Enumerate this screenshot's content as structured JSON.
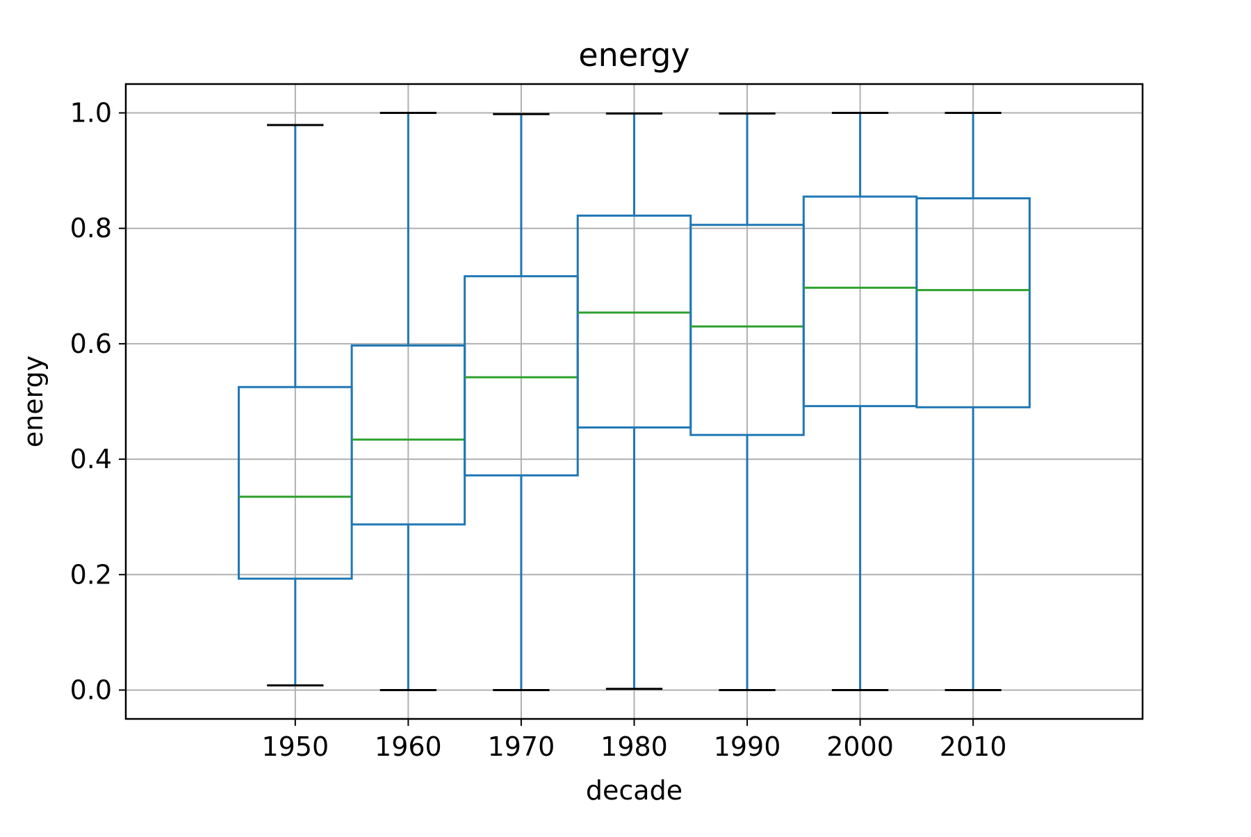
{
  "chart_data": {
    "type": "box",
    "title": "energy",
    "xlabel": "decade",
    "ylabel": "energy",
    "categories": [
      "1950",
      "1960",
      "1970",
      "1980",
      "1990",
      "2000",
      "2010"
    ],
    "boxes": [
      {
        "category": "1950",
        "whisker_low": 0.008,
        "q1": 0.193,
        "median": 0.335,
        "q3": 0.525,
        "whisker_high": 0.979
      },
      {
        "category": "1960",
        "whisker_low": 0.0,
        "q1": 0.287,
        "median": 0.434,
        "q3": 0.597,
        "whisker_high": 1.0
      },
      {
        "category": "1970",
        "whisker_low": 0.0,
        "q1": 0.372,
        "median": 0.542,
        "q3": 0.717,
        "whisker_high": 0.998
      },
      {
        "category": "1980",
        "whisker_low": 0.002,
        "q1": 0.455,
        "median": 0.654,
        "q3": 0.822,
        "whisker_high": 0.999
      },
      {
        "category": "1990",
        "whisker_low": 0.0,
        "q1": 0.442,
        "median": 0.63,
        "q3": 0.806,
        "whisker_high": 0.999
      },
      {
        "category": "2000",
        "whisker_low": 0.0,
        "q1": 0.492,
        "median": 0.697,
        "q3": 0.855,
        "whisker_high": 1.0
      },
      {
        "category": "2010",
        "whisker_low": 0.0,
        "q1": 0.49,
        "median": 0.693,
        "q3": 0.852,
        "whisker_high": 1.0
      }
    ],
    "yticks": [
      0.0,
      0.2,
      0.4,
      0.6,
      0.8,
      1.0
    ],
    "ytick_labels": [
      "0.0",
      "0.2",
      "0.4",
      "0.6",
      "0.8",
      "1.0"
    ],
    "ylim": [
      -0.05,
      1.05
    ],
    "grid": true,
    "colors": {
      "box": "#1f77b4",
      "median": "#2ca02c",
      "cap": "#000000",
      "grid": "#b0b0b0"
    }
  }
}
